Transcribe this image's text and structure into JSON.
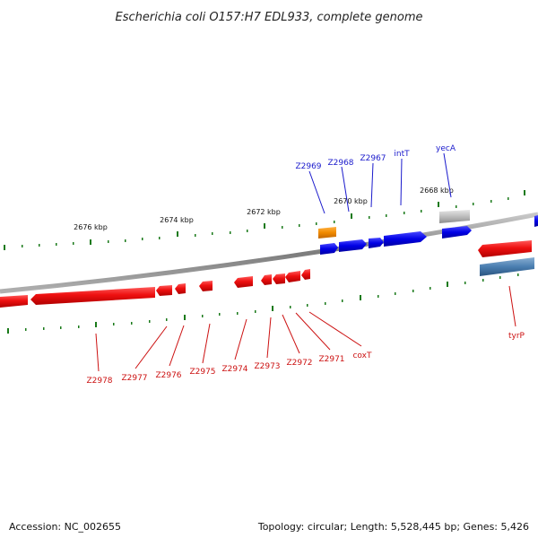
{
  "title": "Escherichia coli O157:H7 EDL933, complete genome",
  "scale_labels": [
    "2676 kbp",
    "2674 kbp",
    "2672 kbp",
    "2670 kbp",
    "2668 kbp"
  ],
  "genes_forward": [
    "Z2969",
    "Z2968",
    "Z2967",
    "intT",
    "yecA"
  ],
  "genes_reverse": [
    "Z2978",
    "Z2977",
    "Z2976",
    "Z2975",
    "Z2974",
    "Z2973",
    "Z2972",
    "Z2971",
    "coxT",
    "tyrP"
  ],
  "footer": {
    "accession": "Accession: NC_002655",
    "summary": "Topology: circular; Length: 5,528,445 bp; Genes: 5,426"
  },
  "colors": {
    "forward_gene": "#1010e0",
    "reverse_gene": "#ee0f0f",
    "orange_gene": "#f08a00",
    "gray_gene": "#b8b8b8",
    "steel_gene": "#4a7eb0",
    "tick": "#1a7a1a",
    "backbone": "#808080"
  }
}
